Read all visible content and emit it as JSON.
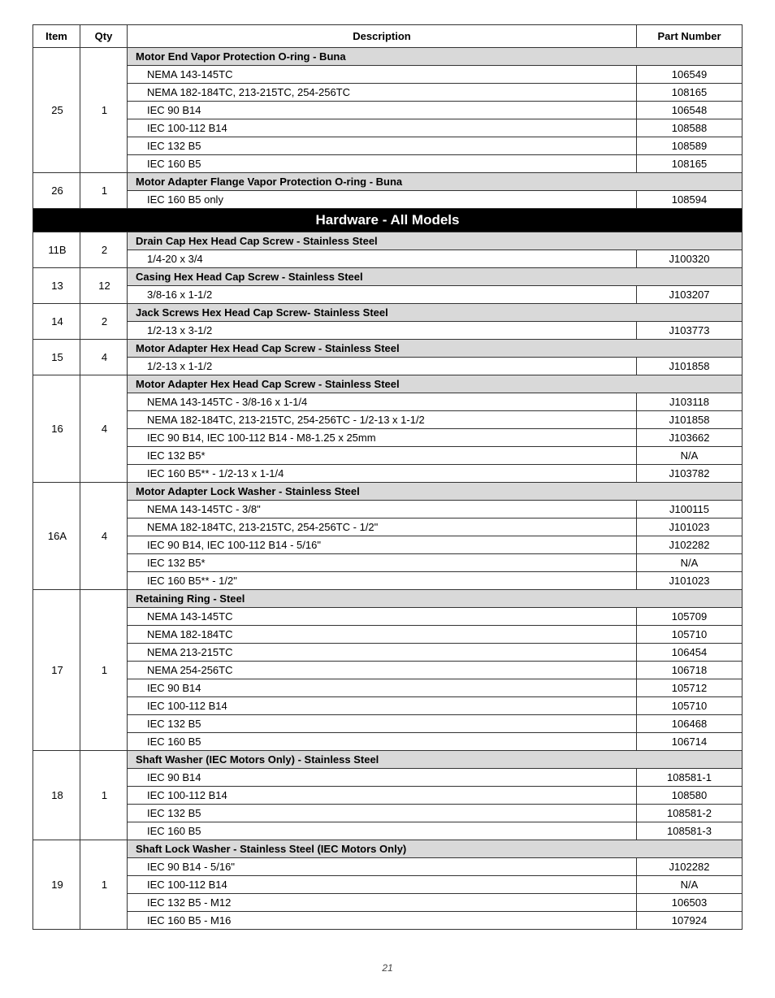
{
  "colors": {
    "header_bg": "#d9d9d9",
    "band_bg": "#000000",
    "band_fg": "#ffffff",
    "border": "#333333",
    "text": "#000000"
  },
  "columns": {
    "item": "Item",
    "qty": "Qty",
    "desc": "Description",
    "part": "Part Number"
  },
  "page_number": "21",
  "sections": [
    {
      "rows": [
        {
          "item": "25",
          "qty": "1",
          "group": "Motor End Vapor Protection O-ring - Buna",
          "lines": [
            {
              "desc": "NEMA 143-145TC",
              "part": "106549"
            },
            {
              "desc": "NEMA 182-184TC, 213-215TC, 254-256TC",
              "part": "108165"
            },
            {
              "desc": "IEC 90 B14",
              "part": "106548"
            },
            {
              "desc": "IEC 100-112 B14",
              "part": "108588"
            },
            {
              "desc": "IEC 132 B5",
              "part": "108589"
            },
            {
              "desc": "IEC 160 B5",
              "part": "108165"
            }
          ]
        },
        {
          "item": "26",
          "qty": "1",
          "group": "Motor Adapter Flange Vapor Protection O-ring - Buna",
          "lines": [
            {
              "desc": "IEC 160 B5 only",
              "part": "108594"
            }
          ]
        }
      ]
    },
    {
      "band": "Hardware - All Models",
      "rows": [
        {
          "item": "11B",
          "qty": "2",
          "group": "Drain Cap Hex Head Cap Screw - Stainless Steel",
          "lines": [
            {
              "desc": "1/4-20 x 3/4",
              "part": "J100320"
            }
          ]
        },
        {
          "item": "13",
          "qty": "12",
          "group": "Casing Hex Head Cap Screw - Stainless Steel",
          "lines": [
            {
              "desc": "3/8-16 x 1-1/2",
              "part": "J103207"
            }
          ]
        },
        {
          "item": "14",
          "qty": "2",
          "group": "Jack Screws Hex Head Cap Screw- Stainless Steel",
          "lines": [
            {
              "desc": "1/2-13 x 3-1/2",
              "part": "J103773"
            }
          ]
        },
        {
          "item": "15",
          "qty": "4",
          "group": "Motor Adapter Hex Head Cap Screw - Stainless Steel",
          "lines": [
            {
              "desc": "1/2-13 x 1-1/2",
              "part": "J101858"
            }
          ]
        },
        {
          "item": "16",
          "qty": "4",
          "group": "Motor Adapter Hex Head Cap Screw - Stainless Steel",
          "lines": [
            {
              "desc": "NEMA 143-145TC - 3/8-16 x 1-1/4",
              "part": "J103118"
            },
            {
              "desc": "NEMA 182-184TC, 213-215TC, 254-256TC - 1/2-13 x 1-1/2",
              "part": "J101858"
            },
            {
              "desc": "IEC 90 B14, IEC 100-112 B14 - M8-1.25 x 25mm",
              "part": "J103662"
            },
            {
              "desc": "IEC 132 B5*",
              "part": "N/A"
            },
            {
              "desc": "IEC 160 B5** - 1/2-13 x 1-1/4",
              "part": "J103782"
            }
          ]
        },
        {
          "item": "16A",
          "qty": "4",
          "group": "Motor Adapter Lock Washer - Stainless Steel",
          "lines": [
            {
              "desc": "NEMA 143-145TC - 3/8\"",
              "part": "J100115"
            },
            {
              "desc": "NEMA 182-184TC, 213-215TC, 254-256TC - 1/2\"",
              "part": "J101023"
            },
            {
              "desc": "IEC 90 B14, IEC 100-112 B14 - 5/16\"",
              "part": "J102282"
            },
            {
              "desc": "IEC 132 B5*",
              "part": "N/A"
            },
            {
              "desc": "IEC 160 B5** - 1/2\"",
              "part": "J101023"
            }
          ]
        },
        {
          "item": "17",
          "qty": "1",
          "group": "Retaining Ring - Steel",
          "lines": [
            {
              "desc": "NEMA 143-145TC",
              "part": "105709"
            },
            {
              "desc": "NEMA 182-184TC",
              "part": "105710"
            },
            {
              "desc": "NEMA 213-215TC",
              "part": "106454"
            },
            {
              "desc": "NEMA 254-256TC",
              "part": "106718"
            },
            {
              "desc": "IEC 90 B14",
              "part": "105712"
            },
            {
              "desc": "IEC 100-112 B14",
              "part": "105710"
            },
            {
              "desc": "IEC 132 B5",
              "part": "106468"
            },
            {
              "desc": "IEC 160 B5",
              "part": "106714"
            }
          ]
        },
        {
          "item": "18",
          "qty": "1",
          "group": "Shaft Washer (IEC Motors Only) - Stainless Steel",
          "lines": [
            {
              "desc": "IEC 90 B14",
              "part": "108581-1"
            },
            {
              "desc": "IEC 100-112 B14",
              "part": "108580"
            },
            {
              "desc": "IEC 132 B5",
              "part": "108581-2"
            },
            {
              "desc": "IEC 160 B5",
              "part": "108581-3"
            }
          ]
        },
        {
          "item": "19",
          "qty": "1",
          "group": "Shaft Lock Washer - Stainless Steel (IEC Motors Only)",
          "lines": [
            {
              "desc": "IEC 90 B14 - 5/16\"",
              "part": "J102282"
            },
            {
              "desc": "IEC 100-112 B14",
              "part": "N/A"
            },
            {
              "desc": "IEC 132 B5 - M12",
              "part": "106503"
            },
            {
              "desc": "IEC 160 B5 - M16",
              "part": "107924"
            }
          ]
        }
      ]
    }
  ]
}
